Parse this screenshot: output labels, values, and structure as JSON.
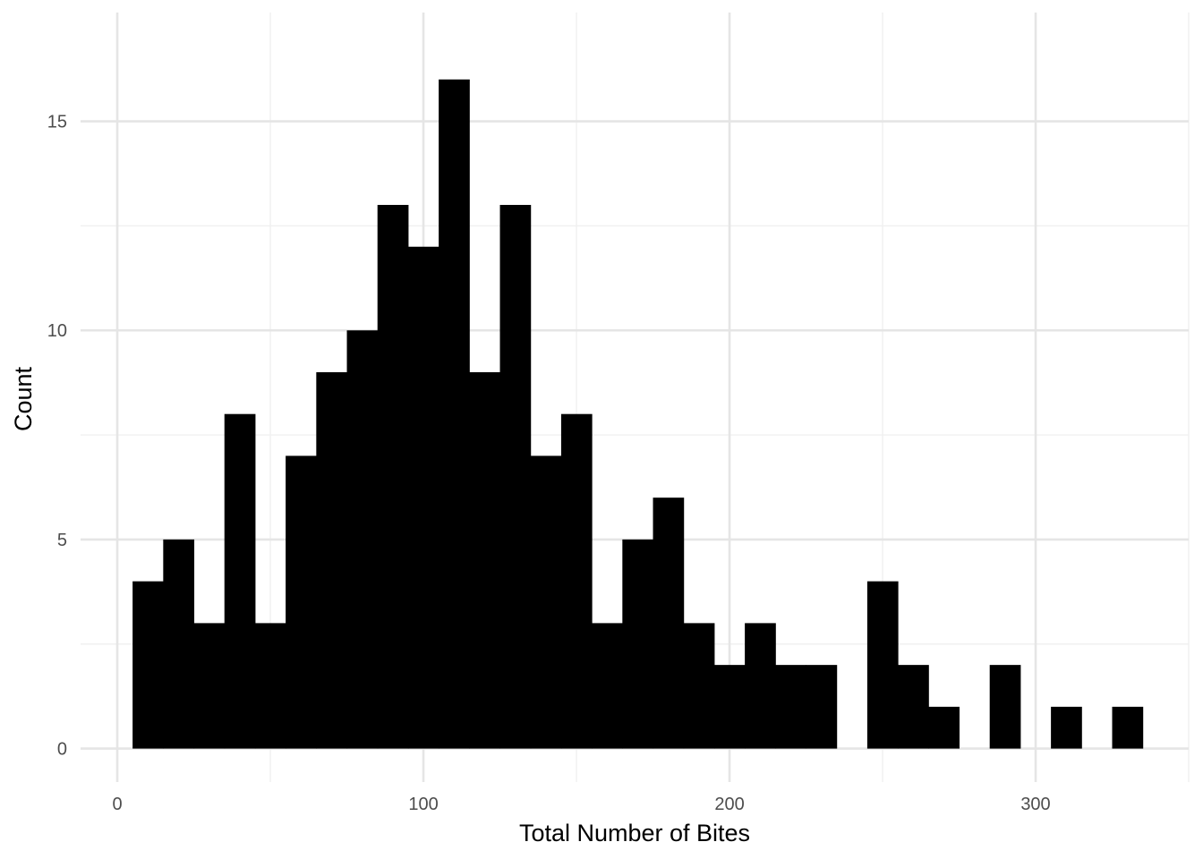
{
  "chart_data": {
    "type": "bar",
    "subtype": "histogram",
    "xlabel": "Total Number of Bites",
    "ylabel": "Count",
    "bin_width": 10,
    "bins": [
      {
        "x0": 5,
        "x1": 15,
        "count": 4
      },
      {
        "x0": 15,
        "x1": 25,
        "count": 5
      },
      {
        "x0": 25,
        "x1": 35,
        "count": 3
      },
      {
        "x0": 35,
        "x1": 45,
        "count": 8
      },
      {
        "x0": 45,
        "x1": 55,
        "count": 3
      },
      {
        "x0": 55,
        "x1": 65,
        "count": 7
      },
      {
        "x0": 65,
        "x1": 75,
        "count": 9
      },
      {
        "x0": 75,
        "x1": 85,
        "count": 10
      },
      {
        "x0": 85,
        "x1": 95,
        "count": 13
      },
      {
        "x0": 95,
        "x1": 105,
        "count": 12
      },
      {
        "x0": 105,
        "x1": 115,
        "count": 16
      },
      {
        "x0": 115,
        "x1": 125,
        "count": 9
      },
      {
        "x0": 125,
        "x1": 135,
        "count": 13
      },
      {
        "x0": 135,
        "x1": 145,
        "count": 7
      },
      {
        "x0": 145,
        "x1": 155,
        "count": 8
      },
      {
        "x0": 155,
        "x1": 165,
        "count": 3
      },
      {
        "x0": 165,
        "x1": 175,
        "count": 5
      },
      {
        "x0": 175,
        "x1": 185,
        "count": 6
      },
      {
        "x0": 185,
        "x1": 195,
        "count": 3
      },
      {
        "x0": 195,
        "x1": 205,
        "count": 2
      },
      {
        "x0": 205,
        "x1": 215,
        "count": 3
      },
      {
        "x0": 215,
        "x1": 225,
        "count": 2
      },
      {
        "x0": 225,
        "x1": 235,
        "count": 2
      },
      {
        "x0": 235,
        "x1": 245,
        "count": 0
      },
      {
        "x0": 245,
        "x1": 255,
        "count": 4
      },
      {
        "x0": 255,
        "x1": 265,
        "count": 2
      },
      {
        "x0": 265,
        "x1": 275,
        "count": 1
      },
      {
        "x0": 275,
        "x1": 285,
        "count": 0
      },
      {
        "x0": 285,
        "x1": 295,
        "count": 2
      },
      {
        "x0": 295,
        "x1": 305,
        "count": 0
      },
      {
        "x0": 305,
        "x1": 315,
        "count": 1
      },
      {
        "x0": 315,
        "x1": 325,
        "count": 0
      },
      {
        "x0": 325,
        "x1": 335,
        "count": 1
      }
    ],
    "xlim": [
      -12,
      350
    ],
    "ylim": [
      -0.8,
      17.6
    ],
    "x_ticks": [
      0,
      100,
      200,
      300
    ],
    "x_tick_labels": [
      "0",
      "100",
      "200",
      "300"
    ],
    "y_ticks": [
      0,
      5,
      10,
      15
    ],
    "y_tick_labels": [
      "0",
      "5",
      "10",
      "15"
    ],
    "x_minor_ticks": [
      50,
      150,
      250,
      350
    ],
    "y_minor_ticks": [
      2.5,
      7.5,
      12.5
    ],
    "grid": true,
    "bar_color": "#000000",
    "grid_major_color": "#e5e5e5",
    "grid_minor_color": "#f0f0f0",
    "background": "#ffffff"
  }
}
